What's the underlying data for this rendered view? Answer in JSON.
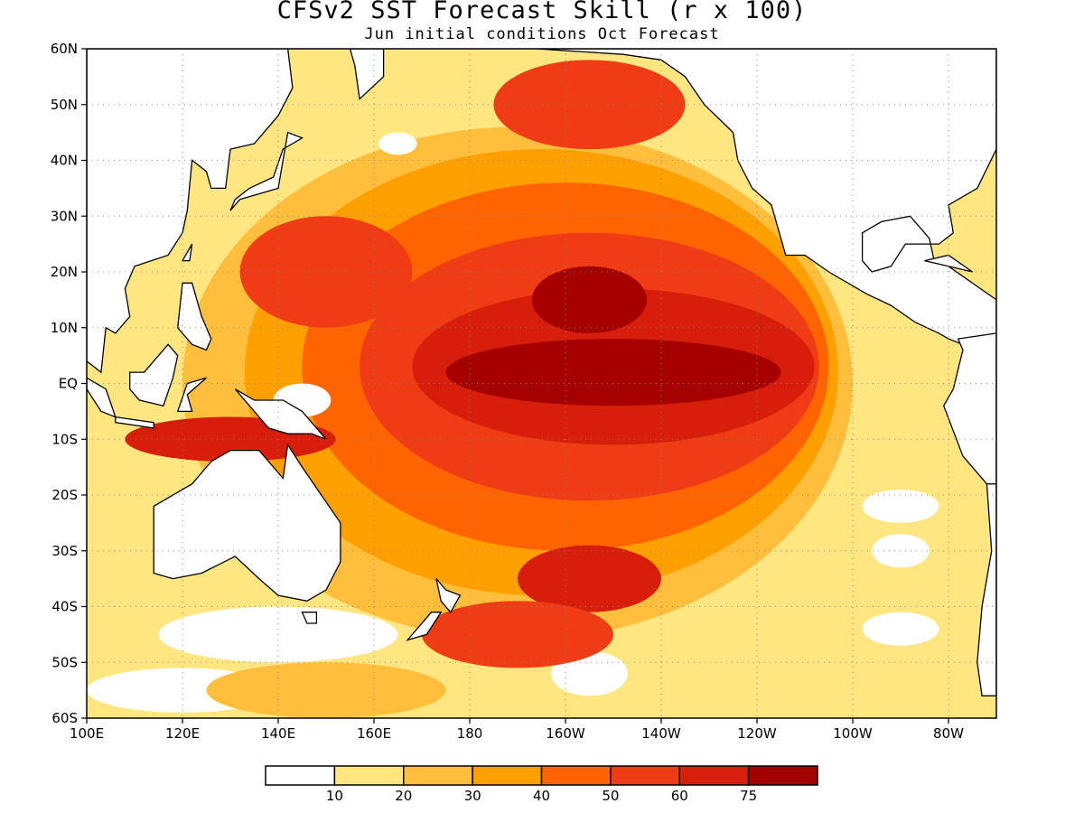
{
  "title": "CFSv2 SST Forecast Skill (r x 100)",
  "subtitle": "Jun initial conditions  Oct Forecast",
  "x_ticks": [
    {
      "lon": 100,
      "label": "100E"
    },
    {
      "lon": 120,
      "label": "120E"
    },
    {
      "lon": 140,
      "label": "140E"
    },
    {
      "lon": 160,
      "label": "160E"
    },
    {
      "lon": 180,
      "label": "180"
    },
    {
      "lon": 200,
      "label": "160W"
    },
    {
      "lon": 220,
      "label": "140W"
    },
    {
      "lon": 240,
      "label": "120W"
    },
    {
      "lon": 260,
      "label": "100W"
    },
    {
      "lon": 280,
      "label": "80W"
    }
  ],
  "y_ticks": [
    {
      "lat": 60,
      "label": "60N"
    },
    {
      "lat": 50,
      "label": "50N"
    },
    {
      "lat": 40,
      "label": "40N"
    },
    {
      "lat": 30,
      "label": "30N"
    },
    {
      "lat": 20,
      "label": "20N"
    },
    {
      "lat": 10,
      "label": "10N"
    },
    {
      "lat": 0,
      "label": "EQ"
    },
    {
      "lat": -10,
      "label": "10S"
    },
    {
      "lat": -20,
      "label": "20S"
    },
    {
      "lat": -30,
      "label": "30S"
    },
    {
      "lat": -40,
      "label": "40S"
    },
    {
      "lat": -50,
      "label": "50S"
    },
    {
      "lat": -60,
      "label": "60S"
    }
  ],
  "map_extent": {
    "lon": [
      100,
      290
    ],
    "lat": [
      -60,
      60
    ]
  },
  "colorbar": {
    "colors": [
      "#ffffff",
      "#ffe680",
      "#ffbe3c",
      "#ffa000",
      "#ff6400",
      "#f03c14",
      "#d61e0a",
      "#a50000"
    ],
    "labels": [
      "10",
      "20",
      "30",
      "40",
      "50",
      "60",
      "75"
    ]
  },
  "regions": [
    {
      "level": 1,
      "lon": 190,
      "lat": 0,
      "rx": 75,
      "ry": 52
    },
    {
      "level": 2,
      "lon": 190,
      "lat": 0,
      "rx": 70,
      "ry": 46
    },
    {
      "level": 3,
      "lon": 195,
      "lat": 2,
      "rx": 62,
      "ry": 40
    },
    {
      "level": 4,
      "lon": 200,
      "lat": 3,
      "rx": 55,
      "ry": 33
    },
    {
      "level": 5,
      "lon": 205,
      "lat": 3,
      "rx": 48,
      "ry": 24
    },
    {
      "level": 6,
      "lon": 210,
      "lat": 3,
      "rx": 42,
      "ry": 14
    },
    {
      "level": 7,
      "lon": 210,
      "lat": 2,
      "rx": 35,
      "ry": 6
    },
    {
      "level": 7,
      "lon": 205,
      "lat": 15,
      "rx": 12,
      "ry": 6
    },
    {
      "level": 5,
      "lon": 205,
      "lat": 50,
      "rx": 20,
      "ry": 8
    },
    {
      "level": 6,
      "lon": 130,
      "lat": -10,
      "rx": 22,
      "ry": 4
    },
    {
      "level": 5,
      "lon": 150,
      "lat": 20,
      "rx": 18,
      "ry": 10
    },
    {
      "level": 0,
      "lon": 145,
      "lat": -3,
      "rx": 6,
      "ry": 3
    },
    {
      "level": 0,
      "lon": 165,
      "lat": 43,
      "rx": 4,
      "ry": 2
    },
    {
      "level": 0,
      "lon": 270,
      "lat": -22,
      "rx": 8,
      "ry": 3
    },
    {
      "level": 0,
      "lon": 270,
      "lat": -30,
      "rx": 6,
      "ry": 3
    },
    {
      "level": 0,
      "lon": 270,
      "lat": -44,
      "rx": 8,
      "ry": 3
    },
    {
      "level": 0,
      "lon": 205,
      "lat": -52,
      "rx": 8,
      "ry": 4
    },
    {
      "level": 0,
      "lon": 140,
      "lat": -45,
      "rx": 25,
      "ry": 5
    },
    {
      "level": 0,
      "lon": 120,
      "lat": -55,
      "rx": 20,
      "ry": 4
    },
    {
      "level": 2,
      "lon": 150,
      "lat": -55,
      "rx": 25,
      "ry": 5
    },
    {
      "level": 6,
      "lon": 205,
      "lat": -35,
      "rx": 15,
      "ry": 6
    },
    {
      "level": 5,
      "lon": 190,
      "lat": -45,
      "rx": 20,
      "ry": 6
    }
  ],
  "land": [
    {
      "name": "asia",
      "points": [
        [
          100,
          60
        ],
        [
          142,
          60
        ],
        [
          143,
          53
        ],
        [
          140,
          48
        ],
        [
          135,
          43
        ],
        [
          130,
          42
        ],
        [
          129,
          35
        ],
        [
          126,
          35
        ],
        [
          125,
          38
        ],
        [
          122,
          40
        ],
        [
          121,
          31
        ],
        [
          120,
          27
        ],
        [
          117,
          23
        ],
        [
          110,
          21
        ],
        [
          108,
          17
        ],
        [
          109,
          12
        ],
        [
          106,
          9
        ],
        [
          104,
          10
        ],
        [
          103,
          2
        ],
        [
          100,
          4
        ]
      ]
    },
    {
      "name": "kamchatka",
      "points": [
        [
          155,
          60
        ],
        [
          162,
          60
        ],
        [
          162,
          55
        ],
        [
          157,
          51
        ],
        [
          156,
          57
        ]
      ]
    },
    {
      "name": "japan",
      "points": [
        [
          130,
          31
        ],
        [
          132,
          33
        ],
        [
          136,
          34
        ],
        [
          140,
          35
        ],
        [
          141,
          40
        ],
        [
          142,
          45
        ],
        [
          145,
          44
        ],
        [
          141,
          42
        ],
        [
          139,
          37
        ],
        [
          134,
          35
        ],
        [
          131,
          33
        ]
      ]
    },
    {
      "name": "taiwan",
      "points": [
        [
          120,
          22
        ],
        [
          122,
          25
        ],
        [
          121.5,
          22
        ]
      ]
    },
    {
      "name": "philippines",
      "points": [
        [
          120,
          18
        ],
        [
          122,
          18
        ],
        [
          124,
          12
        ],
        [
          126,
          8
        ],
        [
          125,
          6
        ],
        [
          122,
          7
        ],
        [
          119,
          10
        ]
      ]
    },
    {
      "name": "borneo",
      "points": [
        [
          109,
          2
        ],
        [
          112,
          2
        ],
        [
          117,
          7
        ],
        [
          119,
          5
        ],
        [
          118,
          1
        ],
        [
          116,
          -4
        ],
        [
          111,
          -3
        ],
        [
          109,
          -1
        ]
      ]
    },
    {
      "name": "sumatra",
      "points": [
        [
          100,
          1
        ],
        [
          104,
          -1
        ],
        [
          106,
          -6
        ],
        [
          103,
          -5
        ],
        [
          100,
          -1
        ]
      ]
    },
    {
      "name": "java",
      "points": [
        [
          106,
          -6
        ],
        [
          114,
          -7
        ],
        [
          114,
          -8
        ],
        [
          106,
          -7
        ]
      ]
    },
    {
      "name": "sulawesi",
      "points": [
        [
          119,
          -5
        ],
        [
          121,
          0
        ],
        [
          125,
          1
        ],
        [
          121,
          -2
        ],
        [
          122,
          -5
        ]
      ]
    },
    {
      "name": "new-guinea",
      "points": [
        [
          131,
          -1
        ],
        [
          135,
          -3
        ],
        [
          141,
          -3
        ],
        [
          145,
          -5
        ],
        [
          150,
          -10
        ],
        [
          147,
          -9
        ],
        [
          142,
          -9
        ],
        [
          138,
          -8
        ],
        [
          134,
          -4
        ]
      ]
    },
    {
      "name": "australia",
      "points": [
        [
          114,
          -22
        ],
        [
          114,
          -34
        ],
        [
          118,
          -35
        ],
        [
          124,
          -34
        ],
        [
          131,
          -31
        ],
        [
          136,
          -35
        ],
        [
          140,
          -38
        ],
        [
          146,
          -39
        ],
        [
          150,
          -37
        ],
        [
          153,
          -32
        ],
        [
          153,
          -25
        ],
        [
          149,
          -20
        ],
        [
          145,
          -15
        ],
        [
          142,
          -11
        ],
        [
          141,
          -17
        ],
        [
          136,
          -12
        ],
        [
          130,
          -12
        ],
        [
          126,
          -14
        ],
        [
          122,
          -18
        ]
      ]
    },
    {
      "name": "tasmania",
      "points": [
        [
          145,
          -41
        ],
        [
          148,
          -41
        ],
        [
          148,
          -43
        ],
        [
          146,
          -43
        ]
      ]
    },
    {
      "name": "new-zealand-north",
      "points": [
        [
          173,
          -35
        ],
        [
          175,
          -37
        ],
        [
          178,
          -38
        ],
        [
          176,
          -41
        ],
        [
          174,
          -39
        ]
      ]
    },
    {
      "name": "new-zealand-south",
      "points": [
        [
          172,
          -41
        ],
        [
          174,
          -41
        ],
        [
          171,
          -45
        ],
        [
          167,
          -46
        ],
        [
          169,
          -44
        ]
      ]
    },
    {
      "name": "north-america",
      "points": [
        [
          194,
          60
        ],
        [
          212,
          59
        ],
        [
          220,
          58
        ],
        [
          225,
          55
        ],
        [
          229,
          50
        ],
        [
          235,
          45
        ],
        [
          236,
          40
        ],
        [
          239,
          35
        ],
        [
          243,
          32
        ],
        [
          246,
          23
        ],
        [
          250,
          23
        ],
        [
          255,
          20
        ],
        [
          263,
          16
        ],
        [
          268,
          14
        ],
        [
          273,
          11
        ],
        [
          278,
          9
        ],
        [
          280,
          8
        ],
        [
          283,
          7
        ],
        [
          290,
          9
        ],
        [
          290,
          15
        ],
        [
          280,
          21
        ],
        [
          277,
          22
        ],
        [
          276,
          26
        ],
        [
          272,
          30
        ],
        [
          266,
          29
        ],
        [
          262,
          27
        ],
        [
          262,
          22
        ],
        [
          264,
          20
        ],
        [
          268,
          21
        ],
        [
          271,
          25
        ],
        [
          275,
          25
        ],
        [
          278,
          25
        ],
        [
          281,
          27
        ],
        [
          280,
          32
        ],
        [
          286,
          35
        ],
        [
          290,
          42
        ],
        [
          290,
          60
        ]
      ]
    },
    {
      "name": "cuba",
      "points": [
        [
          275,
          22
        ],
        [
          280,
          23
        ],
        [
          285,
          20
        ],
        [
          280,
          21
        ]
      ]
    },
    {
      "name": "south-america",
      "points": [
        [
          282,
          8
        ],
        [
          283,
          6
        ],
        [
          281,
          -1
        ],
        [
          279,
          -4
        ],
        [
          283,
          -13
        ],
        [
          288,
          -18
        ],
        [
          290,
          -19
        ],
        [
          290,
          9
        ]
      ]
    },
    {
      "name": "chile",
      "points": [
        [
          288,
          -18
        ],
        [
          289,
          -30
        ],
        [
          287,
          -40
        ],
        [
          286,
          -50
        ],
        [
          287,
          -56
        ],
        [
          290,
          -56
        ],
        [
          290,
          -18
        ]
      ]
    }
  ]
}
